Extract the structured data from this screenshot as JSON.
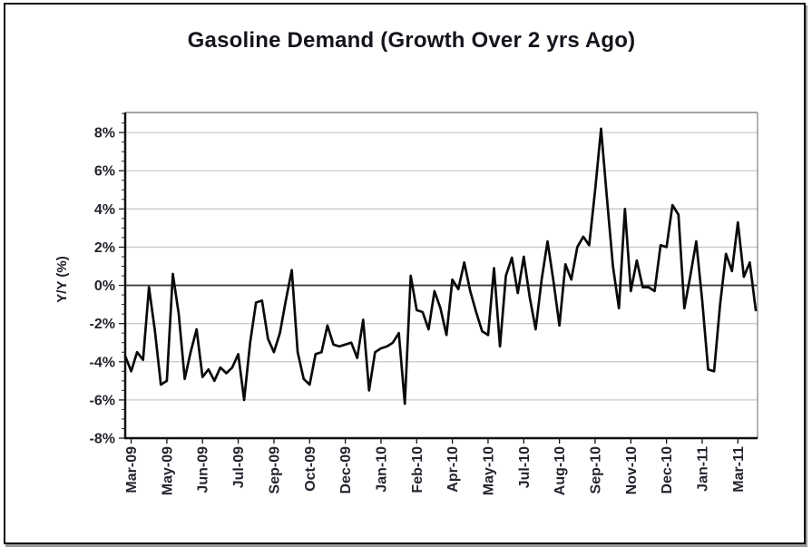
{
  "chart_data": {
    "type": "line",
    "title": "Gasoline Demand (Growth Over 2 yrs Ago)",
    "ylabel": "Y/Y (%)",
    "xlabel": "",
    "ylim": [
      -8,
      9
    ],
    "ytick_values": [
      8,
      6,
      4,
      2,
      0,
      -2,
      -4,
      -6,
      -8
    ],
    "ytick_labels": [
      "8%",
      "6%",
      "4%",
      "2%",
      "0%",
      "-2%",
      "-4%",
      "-6%",
      "-8%"
    ],
    "x_tick_labels": [
      "Mar-09",
      "May-09",
      "Jun-09",
      "Jul-09",
      "Sep-09",
      "Oct-09",
      "Dec-09",
      "Jan-10",
      "Feb-10",
      "Apr-10",
      "May-10",
      "Jul-10",
      "Aug-10",
      "Sep-10",
      "Nov-10",
      "Dec-10",
      "Jan-11",
      "Mar-11"
    ],
    "x_first_tick_index": 1,
    "x_tick_step": 6,
    "grid": true,
    "legend_position": "none",
    "zero_line": true,
    "series": [
      {
        "values": [
          -3.7,
          -4.5,
          -3.5,
          -3.9,
          -0.1,
          -2.4,
          -5.2,
          -5.0,
          0.6,
          -1.5,
          -4.9,
          -3.5,
          -2.3,
          -4.8,
          -4.4,
          -5.0,
          -4.3,
          -4.6,
          -4.3,
          -3.6,
          -6.0,
          -3.0,
          -0.9,
          -0.8,
          -2.8,
          -3.5,
          -2.5,
          -0.8,
          0.8,
          -3.5,
          -4.9,
          -5.2,
          -3.6,
          -3.5,
          -2.1,
          -3.1,
          -3.2,
          -3.1,
          -3.0,
          -3.8,
          -1.8,
          -5.5,
          -3.5,
          -3.3,
          -3.2,
          -3.0,
          -2.5,
          -6.2,
          0.5,
          -1.3,
          -1.4,
          -2.3,
          -0.3,
          -1.2,
          -2.6,
          0.3,
          -0.2,
          1.2,
          -0.3,
          -1.4,
          -2.4,
          -2.6,
          0.9,
          -3.2,
          0.5,
          1.45,
          -0.4,
          1.5,
          -0.6,
          -2.3,
          0.3,
          2.3,
          0.2,
          -2.1,
          1.1,
          0.3,
          2.0,
          2.55,
          2.1,
          5.0,
          8.2,
          4.5,
          1.0,
          -1.2,
          4.0,
          -0.3,
          1.3,
          -0.1,
          -0.1,
          -0.3,
          2.1,
          2.0,
          4.2,
          3.7,
          -1.2,
          0.5,
          2.3,
          -0.8,
          -4.4,
          -4.5,
          -1.0,
          1.65,
          0.75,
          3.3,
          0.45,
          1.2,
          -1.3
        ]
      }
    ]
  },
  "style": {
    "line_color": "#0a0a0a",
    "grid_color": "#c9c9c9",
    "zero_line_color": "#3d3d3d",
    "axis_color": "#111111",
    "plot_frame_color": "#808080",
    "text_color": "#24242e",
    "frame_border_color": "#0b0b0b",
    "background": "#ffffff"
  }
}
